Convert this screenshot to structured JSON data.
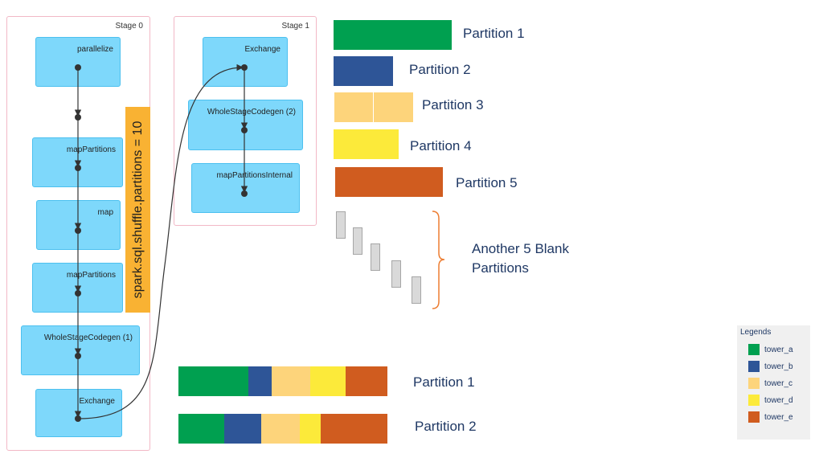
{
  "stage0": {
    "title": "Stage 0",
    "nodes": [
      "parallelize",
      "mapPartitions",
      "map",
      "mapPartitions",
      "WholeStageCodegen (1)",
      "Exchange"
    ]
  },
  "stage1": {
    "title": "Stage 1",
    "nodes": [
      "Exchange",
      "WholeStageCodegen (2)",
      "mapPartitionsInternal"
    ]
  },
  "config_label": "spark.sql.shuffle.partitions = 10",
  "colors": {
    "tower_a": "#00a050",
    "tower_b": "#2e5597",
    "tower_c": "#fdd47b",
    "tower_d": "#fcea3a",
    "tower_e": "#d05c1f"
  },
  "partitions_top": [
    {
      "label": "Partition 1",
      "color": "tower_a"
    },
    {
      "label": "Partition 2",
      "color": "tower_b"
    },
    {
      "label": "Partition 3",
      "color": "tower_c"
    },
    {
      "label": "Partition 4",
      "color": "tower_d"
    },
    {
      "label": "Partition 5",
      "color": "tower_e"
    }
  ],
  "blank_partitions": {
    "line1": "Another 5 Blank",
    "line2": "Partitions"
  },
  "partitions_bottom": [
    {
      "label": "Partition 1",
      "segments": [
        "tower_a",
        "tower_b",
        "tower_c",
        "tower_d",
        "tower_e"
      ]
    },
    {
      "label": "Partition 2",
      "segments": [
        "tower_a",
        "tower_b",
        "tower_c",
        "tower_d",
        "tower_e"
      ]
    }
  ],
  "legend": {
    "title": "Legends",
    "items": [
      {
        "label": "tower_a",
        "color": "#00a050"
      },
      {
        "label": "tower_b",
        "color": "#2e5597"
      },
      {
        "label": "tower_c",
        "color": "#fdd47b"
      },
      {
        "label": "tower_d",
        "color": "#fcea3a"
      },
      {
        "label": "tower_e",
        "color": "#d05c1f"
      }
    ]
  }
}
